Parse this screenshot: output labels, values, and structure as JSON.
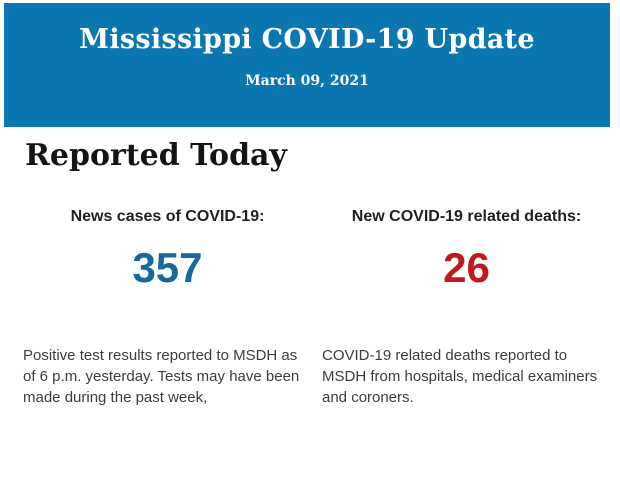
{
  "banner": {
    "title": "Mississippi COVID-19 Update",
    "date": "March 09, 2021",
    "background_color": "#0b77b1",
    "text_color": "#ffffff"
  },
  "section": {
    "heading": "Reported Today"
  },
  "stats": [
    {
      "label": "News cases of COVID-19:",
      "value": "357",
      "value_color": "#17689d",
      "description": "Positive test results reported to MSDH as of 6 p.m. yesterday. Tests may have been made during the past week,"
    },
    {
      "label": "New COVID-19 related deaths:",
      "value": "26",
      "value_color": "#c0181c",
      "description": "COVID-19 related deaths reported to MSDH from hospitals, medical examiners and coroners."
    }
  ]
}
